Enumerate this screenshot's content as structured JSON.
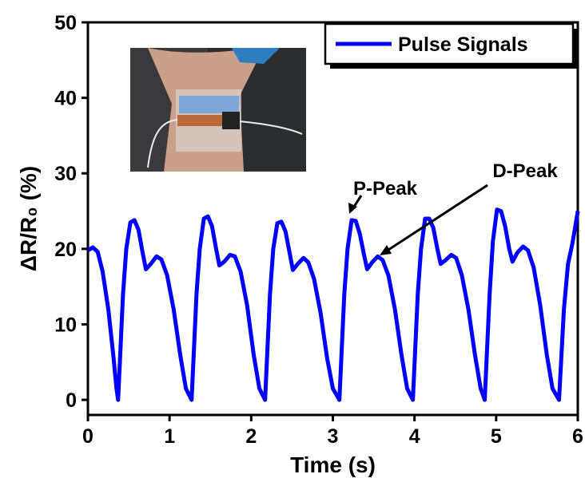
{
  "chart_data": {
    "type": "line",
    "xlabel": "Time (s)",
    "ylabel": "ΔR/R₀ (%)",
    "xlim": [
      0,
      6
    ],
    "ylim": [
      -2,
      50
    ],
    "xticks": [
      0,
      1,
      2,
      3,
      4,
      5,
      6
    ],
    "yticks": [
      0,
      10,
      20,
      30,
      40,
      50
    ],
    "legend": "upper right",
    "annotations": [
      "P-Peak",
      "D-Peak"
    ],
    "x": [
      0,
      0.06,
      0.12,
      0.18,
      0.25,
      0.31,
      0.35,
      0.37,
      0.43,
      0.47,
      0.52,
      0.57,
      0.62,
      0.67,
      0.71,
      0.77,
      0.84,
      0.9,
      0.97,
      1.05,
      1.13,
      1.2,
      1.27,
      1.33,
      1.37,
      1.42,
      1.47,
      1.52,
      1.57,
      1.61,
      1.67,
      1.74,
      1.8,
      1.87,
      1.95,
      2.03,
      2.1,
      2.17,
      2.23,
      2.27,
      2.32,
      2.37,
      2.42,
      2.47,
      2.51,
      2.57,
      2.64,
      2.7,
      2.77,
      2.85,
      2.93,
      3.0,
      3.08,
      3.14,
      3.18,
      3.23,
      3.28,
      3.33,
      3.38,
      3.42,
      3.48,
      3.55,
      3.61,
      3.68,
      3.76,
      3.84,
      3.91,
      3.98,
      4.04,
      4.08,
      4.13,
      4.18,
      4.23,
      4.28,
      4.32,
      4.38,
      4.45,
      4.51,
      4.58,
      4.66,
      4.74,
      4.81,
      4.86,
      4.92,
      4.96,
      5.01,
      5.06,
      5.11,
      5.16,
      5.2,
      5.26,
      5.33,
      5.39,
      5.46,
      5.54,
      5.62,
      5.69,
      5.77,
      5.83,
      5.88,
      5.93,
      5.97,
      6.0
    ],
    "series": [
      {
        "name": "Pulse Signals",
        "color": "#0000ff",
        "values": [
          19.8,
          20.2,
          19.6,
          17,
          12,
          6,
          1.5,
          0,
          14,
          20,
          23.5,
          23.8,
          22.5,
          19.5,
          17.3,
          18,
          19,
          18.6,
          16.5,
          12,
          6,
          1.5,
          0,
          14,
          20,
          24,
          24.3,
          23,
          20,
          17.8,
          18.3,
          19.2,
          19,
          17,
          12.5,
          6,
          1.5,
          0,
          14,
          20,
          23.4,
          23.6,
          22.3,
          19.5,
          17.2,
          18,
          18.8,
          18.2,
          16,
          11.5,
          5.5,
          1.5,
          0,
          14,
          20,
          23.8,
          23.7,
          22,
          19.3,
          17.3,
          18.2,
          19,
          18.5,
          16.5,
          12,
          6,
          1.5,
          0,
          14,
          20,
          24,
          24,
          22.8,
          20,
          18,
          18.5,
          19.2,
          18.8,
          16.5,
          12,
          6,
          1.5,
          0,
          14,
          21,
          25.2,
          25,
          23,
          20,
          18.3,
          19.5,
          20.3,
          19.8,
          17.5,
          12.5,
          6,
          1.5,
          0,
          12,
          18,
          20.5,
          23,
          25
        ]
      }
    ]
  }
}
